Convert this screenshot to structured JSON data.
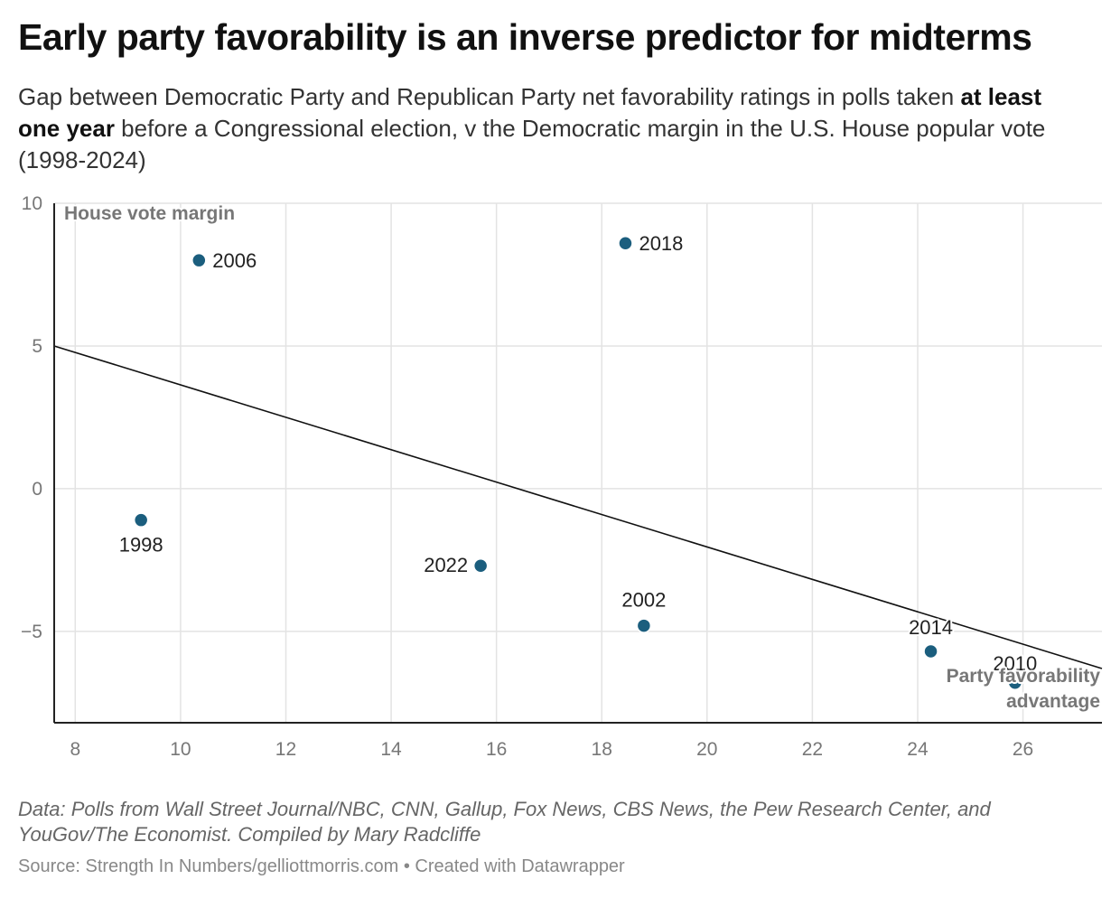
{
  "title": "Early party favorability is an inverse predictor for midterms",
  "subtitle": {
    "part1": "Gap between Democratic Party and Republican Party net favorability ratings in polls taken ",
    "bold": "at least one year",
    "part2": " before a Congressional election, v the Democratic margin in the U.S. House popular vote (1998-2024)"
  },
  "notes": "Data: Polls from Wall Street Journal/NBC, CNN, Gallup, Fox News, CBS News, the Pew Research Center, and YouGov/The Economist. Compiled by Mary Radcliffe",
  "source": "Source: Strength In Numbers/gelliottmorris.com • Created with Datawrapper",
  "colors": {
    "point": "#1b5e7e",
    "trend": "#111111",
    "grid": "#e3e3e3"
  },
  "chart_data": {
    "type": "scatter",
    "xlabel": "Party favorability advantage",
    "ylabel": "House vote margin",
    "xlim": [
      7.6,
      27.5
    ],
    "ylim": [
      -8.2,
      10
    ],
    "xticks": [
      8,
      10,
      12,
      14,
      16,
      18,
      20,
      22,
      24,
      26
    ],
    "yticks": [
      10,
      5,
      0,
      -5
    ],
    "ytick_labels": [
      "10",
      "5",
      "0",
      "−5"
    ],
    "grid": true,
    "points": [
      {
        "label": "1998",
        "x": 9.25,
        "y": -1.1
      },
      {
        "label": "2006",
        "x": 10.35,
        "y": 8.0
      },
      {
        "label": "2018",
        "x": 18.45,
        "y": 8.6
      },
      {
        "label": "2022",
        "x": 15.7,
        "y": -2.7
      },
      {
        "label": "2002",
        "x": 18.8,
        "y": -4.8
      },
      {
        "label": "2014",
        "x": 24.25,
        "y": -5.7
      },
      {
        "label": "2010",
        "x": 25.85,
        "y": -6.8
      }
    ],
    "trendline": {
      "x": [
        7.6,
        27.5
      ],
      "y": [
        5.0,
        -6.3
      ]
    }
  }
}
